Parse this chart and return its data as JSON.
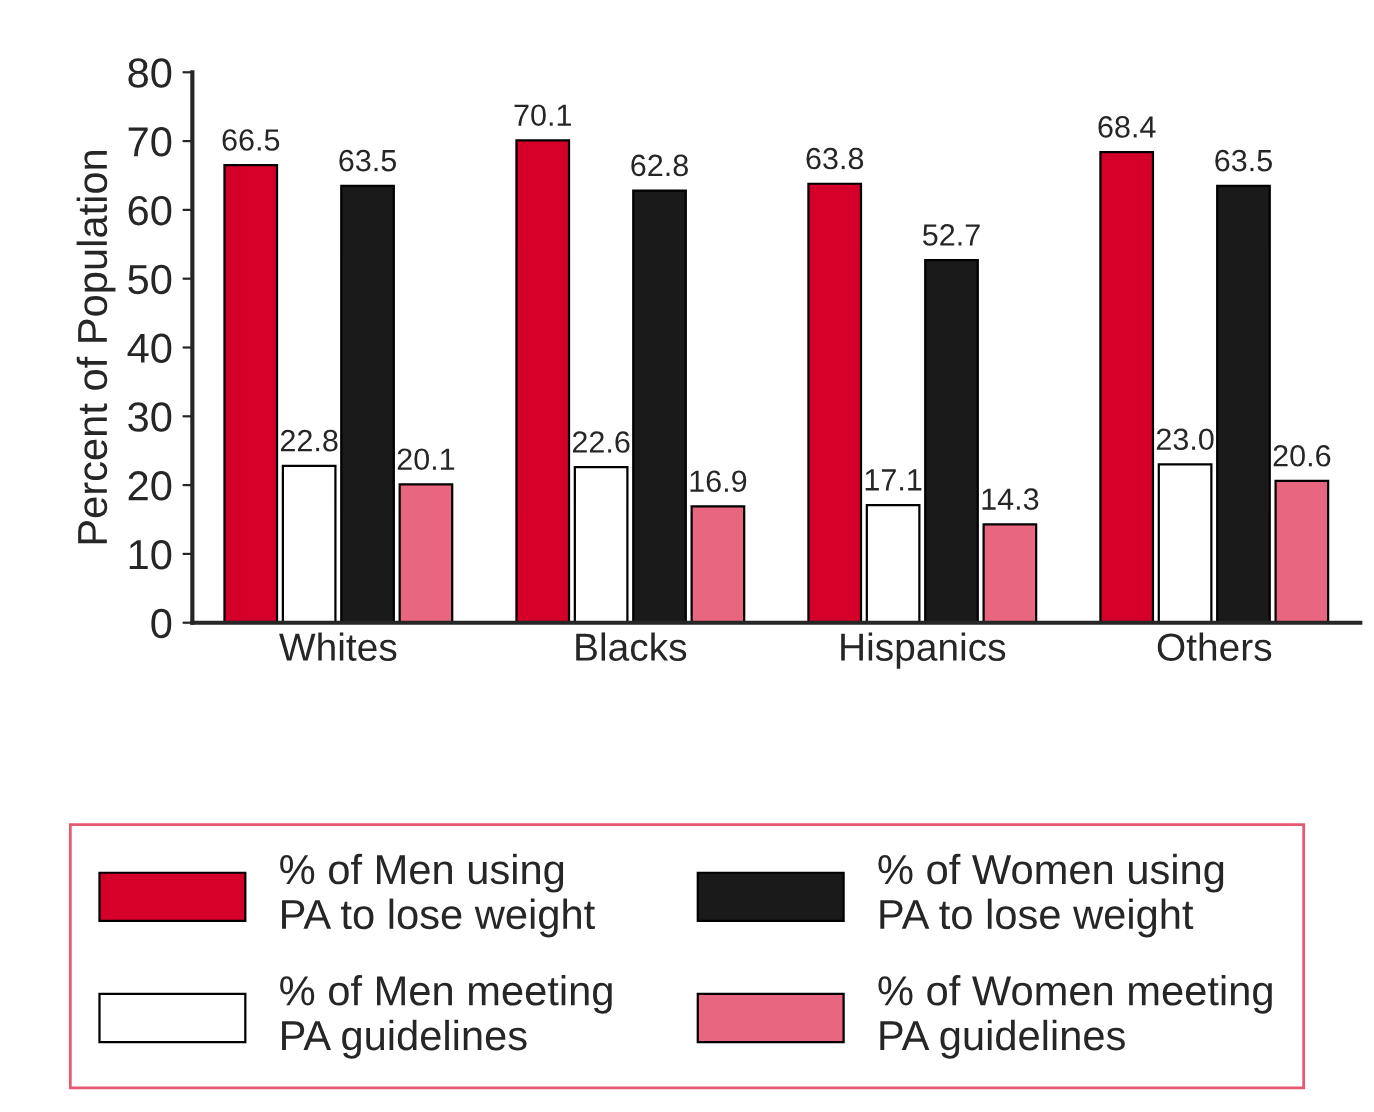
{
  "chart_data": {
    "type": "bar",
    "ylabel": "Percent of Population",
    "categories": [
      "Whites",
      "Blacks",
      "Hispanics",
      "Others"
    ],
    "series": [
      {
        "name": "% of Men using\nPA to lose weight",
        "color": "#d5002a",
        "values": [
          66.5,
          70.1,
          63.8,
          68.4
        ]
      },
      {
        "name": "% of Men meeting\nPA guidelines",
        "color": "#ffffff",
        "values": [
          22.8,
          22.6,
          17.1,
          23.0
        ],
        "value_labels": [
          "22.8",
          "22.6",
          "17.1",
          "23.0"
        ]
      },
      {
        "name": "% of Women using\nPA to lose weight",
        "color": "#1a1a1a",
        "values": [
          63.5,
          62.8,
          52.7,
          63.5
        ]
      },
      {
        "name": "% of Women meeting\nPA guidelines",
        "color": "#e8667f",
        "values": [
          20.1,
          16.9,
          14.3,
          20.6
        ]
      }
    ],
    "ylim": [
      0,
      80
    ],
    "yticks": [
      0,
      10,
      20,
      30,
      40,
      50,
      60,
      70,
      80
    ],
    "data_labels": true,
    "grid": false,
    "legend": "bottom"
  }
}
